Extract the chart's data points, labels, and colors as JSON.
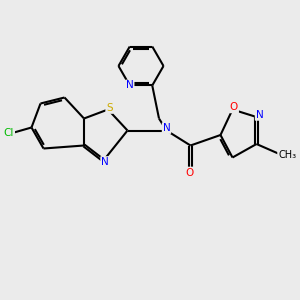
{
  "background_color": "#ebebeb",
  "bond_color": "#000000",
  "atom_colors": {
    "N": "#0000ff",
    "S": "#ccaa00",
    "O": "#ff0000",
    "Cl": "#00bb00",
    "C": "#000000"
  },
  "figsize": [
    3.0,
    3.0
  ],
  "dpi": 100
}
